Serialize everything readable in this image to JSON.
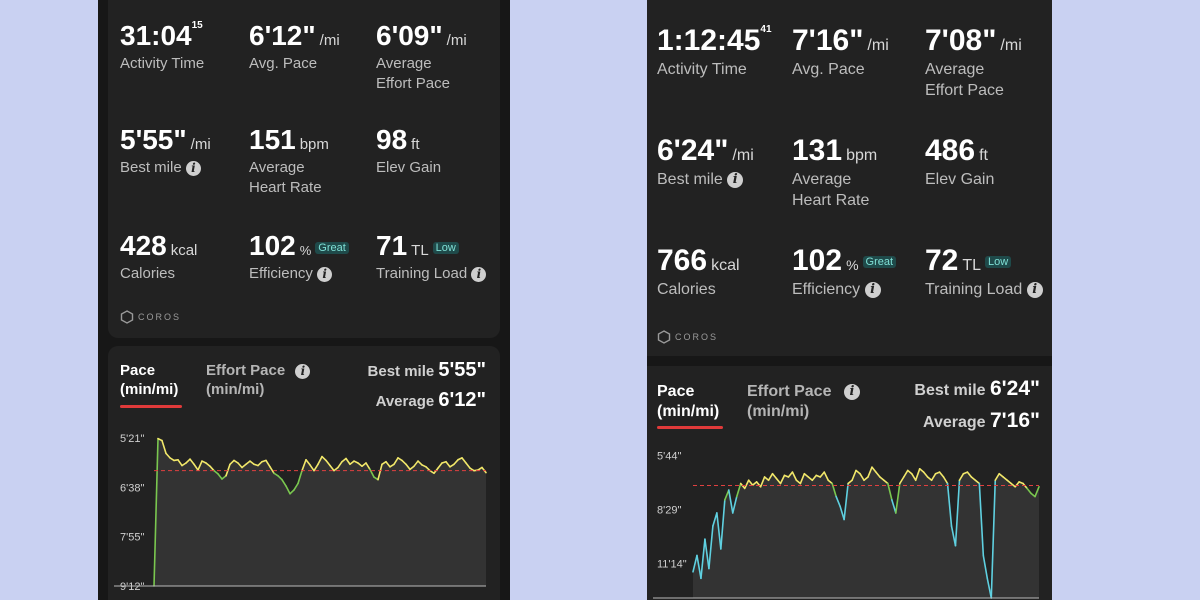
{
  "left": {
    "stats": {
      "activity_time": {
        "value": "31:04",
        "sup": "15",
        "label": "Activity Time"
      },
      "avg_pace": {
        "value": "6'12\"",
        "unit": "/mi",
        "label": "Avg. Pace"
      },
      "avg_effort_pace": {
        "value": "6'09\"",
        "unit": "/mi",
        "label_1": "Average",
        "label_2": "Effort Pace"
      },
      "best_mile": {
        "value": "5'55\"",
        "unit": "/mi",
        "label": "Best mile"
      },
      "avg_hr": {
        "value": "151",
        "unit": "bpm",
        "label_1": "Average",
        "label_2": "Heart Rate"
      },
      "elev_gain": {
        "value": "98",
        "unit": "ft",
        "label": "Elev Gain"
      },
      "calories": {
        "value": "428",
        "unit": "kcal",
        "label": "Calories"
      },
      "efficiency": {
        "value": "102",
        "unit": "%",
        "badge": "Great",
        "label": "Efficiency"
      },
      "training_load": {
        "value": "71",
        "unit": "TL",
        "badge": "Low",
        "label": "Training Load"
      }
    },
    "logo": "COROS",
    "tabs": {
      "pace_1": "Pace",
      "pace_2": "(min/mi)",
      "effort_1": "Effort Pace",
      "effort_2": "(min/mi)"
    },
    "summary": {
      "best_label": "Best mile",
      "best_value": "5'55\"",
      "avg_label": "Average",
      "avg_value": "6'12\""
    }
  },
  "right": {
    "stats": {
      "activity_time": {
        "value": "1:12:45",
        "sup": "41",
        "label": "Activity Time"
      },
      "avg_pace": {
        "value": "7'16\"",
        "unit": "/mi",
        "label": "Avg. Pace"
      },
      "avg_effort_pace": {
        "value": "7'08\"",
        "unit": "/mi",
        "label_1": "Average",
        "label_2": "Effort Pace"
      },
      "best_mile": {
        "value": "6'24\"",
        "unit": "/mi",
        "label": "Best mile"
      },
      "avg_hr": {
        "value": "131",
        "unit": "bpm",
        "label_1": "Average",
        "label_2": "Heart Rate"
      },
      "elev_gain": {
        "value": "486",
        "unit": "ft",
        "label": "Elev Gain"
      },
      "calories": {
        "value": "766",
        "unit": "kcal",
        "label": "Calories"
      },
      "efficiency": {
        "value": "102",
        "unit": "%",
        "badge": "Great",
        "label": "Efficiency"
      },
      "training_load": {
        "value": "72",
        "unit": "TL",
        "badge": "Low",
        "label": "Training Load"
      }
    },
    "logo": "COROS",
    "tabs": {
      "pace_1": "Pace",
      "pace_2": "(min/mi)",
      "effort_1": "Effort Pace",
      "effort_2": "(min/mi)"
    },
    "summary": {
      "best_label": "Best mile",
      "best_value": "6'24\"",
      "avg_label": "Average",
      "avg_value": "7'16\""
    }
  },
  "info_glyph": "i",
  "chart_data": [
    {
      "type": "line",
      "y_tick_labels": [
        "5'21\"",
        "6'38\"",
        "7'55\"",
        "9'12\""
      ],
      "y_ticks_sec": [
        321,
        398,
        475,
        552
      ],
      "ylim_sec": [
        321,
        552
      ],
      "y_inverted": true,
      "average_line_sec": 372,
      "line_colors": {
        "fast": "#f2e86a",
        "slow": "#7ac74f"
      },
      "series": [
        {
          "values_sec": [
            552,
            322,
            325,
            345,
            352,
            356,
            355,
            364,
            360,
            354,
            362,
            371,
            357,
            360,
            365,
            372,
            377,
            385,
            380,
            362,
            356,
            360,
            367,
            362,
            357,
            362,
            364,
            358,
            356,
            366,
            376,
            380,
            386,
            396,
            408,
            402,
            392,
            372,
            355,
            363,
            372,
            362,
            350,
            356,
            364,
            372,
            367,
            358,
            353,
            362,
            357,
            360,
            365,
            360,
            370,
            382,
            386,
            362,
            358,
            366,
            362,
            352,
            356,
            362,
            370,
            365,
            357,
            363,
            366,
            372,
            376,
            368,
            360,
            358,
            366,
            362,
            355,
            352,
            360,
            368,
            372,
            371,
            367,
            375
          ]
        }
      ]
    },
    {
      "type": "line",
      "y_tick_labels": [
        "5'44\"",
        "8'29\"",
        "11'14\""
      ],
      "y_ticks_sec": [
        344,
        509,
        674
      ],
      "ylim_sec": [
        300,
        780
      ],
      "y_inverted": true,
      "average_line_sec": 436,
      "line_colors": {
        "fast": "#f2e86a",
        "mid": "#7ac74f",
        "slow": "#5fd0e0"
      },
      "series": [
        {
          "values_sec": [
            700,
            650,
            720,
            600,
            690,
            560,
            520,
            630,
            480,
            450,
            520,
            470,
            430,
            445,
            420,
            435,
            425,
            440,
            410,
            420,
            400,
            415,
            430,
            405,
            410,
            395,
            420,
            430,
            400,
            410,
            420,
            405,
            410,
            395,
            420,
            430,
            470,
            500,
            540,
            430,
            420,
            390,
            400,
            420,
            410,
            380,
            395,
            410,
            420,
            430,
            480,
            520,
            430,
            410,
            390,
            400,
            420,
            385,
            395,
            410,
            420,
            400,
            395,
            410,
            430,
            560,
            620,
            420,
            400,
            395,
            410,
            420,
            430,
            650,
            720,
            780,
            420,
            400,
            410,
            420,
            430,
            440,
            425,
            430,
            445,
            460,
            470,
            440
          ]
        }
      ]
    }
  ]
}
